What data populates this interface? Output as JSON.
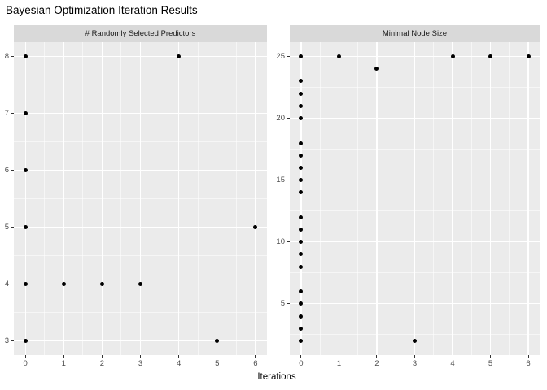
{
  "title": "Bayesian Optimization Iteration Results",
  "xlabel": "Iterations",
  "colors": {
    "panel_bg": "#EBEBEB",
    "strip_bg": "#D9D9D9",
    "gridline": "#FFFFFF",
    "point": "#000000",
    "tick_label": "#4D4D4D",
    "tick_mark": "#333333",
    "title_text": "#000000"
  },
  "chart_data": [
    {
      "type": "scatter",
      "facet_label": "# Randomly Selected Predictors",
      "x": [
        0,
        0,
        0,
        0,
        0,
        0,
        1,
        2,
        3,
        4,
        5,
        6
      ],
      "y": [
        3,
        4,
        5,
        6,
        7,
        8,
        4,
        4,
        4,
        8,
        3,
        5
      ],
      "xlim": [
        0,
        6
      ],
      "ylim": [
        3,
        8
      ],
      "x_ticks": [
        0,
        1,
        2,
        3,
        4,
        5,
        6
      ],
      "y_ticks": [
        3,
        4,
        5,
        6,
        7,
        8
      ],
      "grid": "major-and-minor",
      "legend": "none"
    },
    {
      "type": "scatter",
      "facet_label": "Minimal Node Size",
      "x": [
        0,
        0,
        0,
        0,
        0,
        0,
        0,
        0,
        0,
        0,
        0,
        0,
        0,
        0,
        0,
        0,
        0,
        0,
        0,
        0,
        1,
        2,
        3,
        4,
        5,
        6
      ],
      "y": [
        2,
        3,
        4,
        5,
        6,
        8,
        9,
        10,
        11,
        12,
        14,
        15,
        16,
        17,
        18,
        20,
        21,
        22,
        23,
        25,
        25,
        24,
        2,
        25,
        25,
        25
      ],
      "xlim": [
        0,
        6
      ],
      "ylim": [
        2,
        25
      ],
      "x_ticks": [
        0,
        1,
        2,
        3,
        4,
        5,
        6
      ],
      "y_ticks": [
        5,
        10,
        15,
        20,
        25
      ],
      "grid": "major-and-minor",
      "legend": "none"
    }
  ]
}
